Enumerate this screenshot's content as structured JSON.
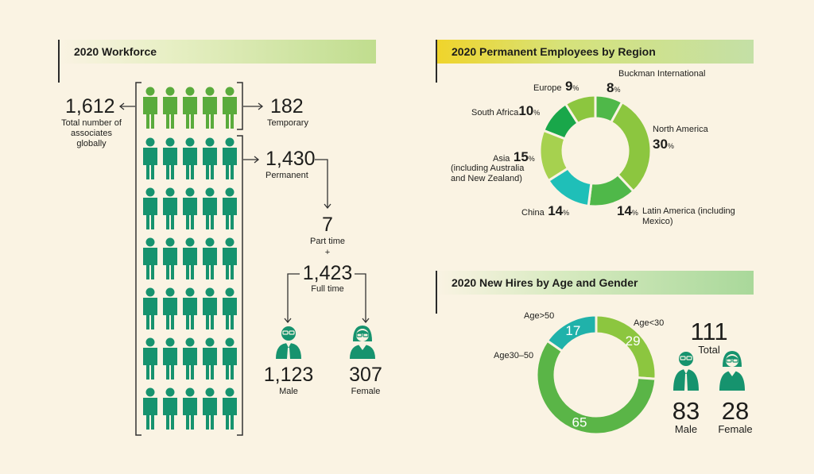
{
  "workforce": {
    "header": "2020 Workforce",
    "total_value": "1,612",
    "total_label": "Total number of associates globally",
    "temporary_value": "182",
    "temporary_label": "Temporary",
    "permanent_value": "1,430",
    "permanent_label": "Permanent",
    "parttime_value": "7",
    "parttime_label": "Part time",
    "plus": "+",
    "fulltime_value": "1,423",
    "fulltime_label": "Full time",
    "male_value": "1,123",
    "male_label": "Male",
    "female_value": "307",
    "female_label": "Female"
  },
  "region": {
    "header": "2020 Permanent Employees by Region",
    "labels": {
      "buckman_name": "Buckman International",
      "buckman_pct": "8",
      "north_name": "North America",
      "north_pct": "30",
      "latin_pct": "14",
      "latin_name": "Latin America (including Mexico)",
      "china_name": "China",
      "china_pct": "14",
      "asia_name": "Asia",
      "asia_pct": "15",
      "asia_note": "(including Australia and New Zealand)",
      "sa_name": "South Africa",
      "sa_pct": "10",
      "europe_name": "Europe",
      "europe_pct": "9",
      "pct_sign": "%"
    }
  },
  "hires": {
    "header": "2020 New Hires by Age and Gender",
    "label_under30": "Age<30",
    "label_over50": "Age>50",
    "label_30_50": "Age30–50",
    "total_value": "111",
    "total_label": "Total",
    "male_value": "83",
    "male_label": "Male",
    "female_value": "28",
    "female_label": "Female"
  },
  "colors": {
    "temp_person": "#5aab3c",
    "perm_person": "#16936e",
    "buckman": "#4fb849",
    "north_america": "#8cc63f",
    "latin_america": "#4fb849",
    "china": "#1fbfb8",
    "asia": "#a6d14f",
    "south_africa": "#19a74a",
    "europe": "#8cc63f",
    "age_under30": "#8cc63f",
    "age_30_50": "#5ab547",
    "age_over50": "#20b2aa",
    "icon_dark": "#16936e"
  },
  "chart_data": [
    {
      "type": "pie",
      "title": "2020 Permanent Employees by Region",
      "categories": [
        "Buckman International",
        "North America",
        "Latin America (including Mexico)",
        "China",
        "Asia (including Australia and New Zealand)",
        "South Africa",
        "Europe"
      ],
      "values": [
        8,
        30,
        14,
        14,
        15,
        10,
        9
      ],
      "unit": "%"
    },
    {
      "type": "pie",
      "title": "2020 New Hires by Age and Gender",
      "categories": [
        "Age<30",
        "Age30–50",
        "Age>50"
      ],
      "values": [
        29,
        65,
        17
      ]
    }
  ]
}
